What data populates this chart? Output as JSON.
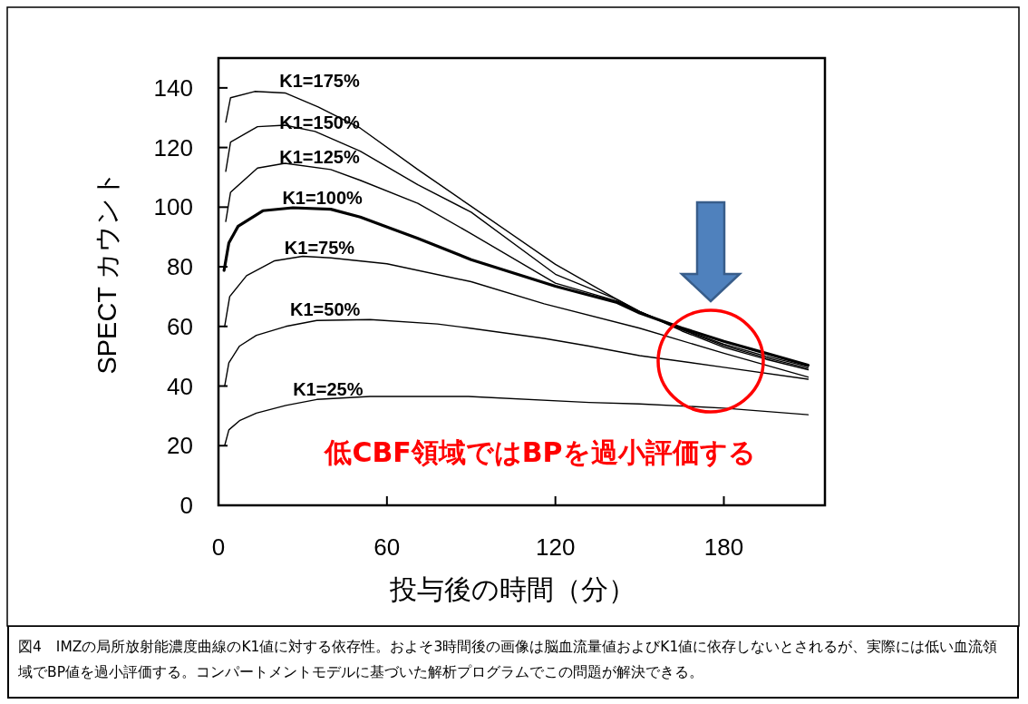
{
  "chart_data": {
    "type": "line",
    "xlabel": "投与後の時間（分）",
    "ylabel": "SPECT カウント",
    "xlim": [
      0,
      216
    ],
    "xticks": [
      0,
      60,
      120,
      180
    ],
    "ylim": [
      0,
      150
    ],
    "yticks": [
      0,
      20,
      40,
      60,
      80,
      100,
      120,
      140
    ],
    "grid": false,
    "marker": "none",
    "line_style": "solid",
    "series": [
      {
        "name": "K1=175%",
        "color": "#000000",
        "x": [
          2.6,
          4.3,
          12.9,
          23.7,
          35.5,
          50.5,
          71,
          90,
          120,
          142,
          150,
          165,
          180,
          195,
          210
        ],
        "values": [
          128.5,
          136.7,
          138.8,
          138.3,
          133.6,
          126.5,
          112.6,
          100.3,
          80.8,
          69,
          65,
          58.5,
          53,
          49,
          45.5
        ]
      },
      {
        "name": "K1=150%",
        "color": "#000000",
        "x": [
          2.6,
          4.3,
          13.9,
          23.7,
          34.4,
          50.5,
          71,
          90,
          120,
          142,
          150,
          165,
          180,
          195,
          210
        ],
        "values": [
          112,
          121.8,
          127,
          127.5,
          125.4,
          118.8,
          107.5,
          98.3,
          77.5,
          69,
          65,
          59,
          53.5,
          49.5,
          46
        ]
      },
      {
        "name": "K1=125%",
        "color": "#000000",
        "x": [
          2.6,
          4.3,
          13.9,
          23.7,
          40,
          50.5,
          71,
          90,
          120,
          142,
          150,
          165,
          180,
          195,
          210
        ],
        "values": [
          95.2,
          105,
          113.1,
          114.7,
          112.6,
          109,
          101.3,
          91.1,
          74.5,
          68.5,
          65,
          59,
          54,
          50,
          46.5
        ]
      },
      {
        "name": "K1=100%",
        "color": "#000000",
        "x": [
          2,
          3.7,
          7,
          15.8,
          26.5,
          40,
          50.5,
          71,
          90,
          120,
          142,
          150,
          165,
          180,
          195,
          210
        ],
        "values": [
          78.8,
          88,
          93.6,
          98.8,
          99.8,
          99.3,
          96.7,
          89.5,
          82.4,
          73.5,
          68,
          64.5,
          59.5,
          55,
          51,
          47
        ]
      },
      {
        "name": "K1=75%",
        "color": "#000000",
        "x": [
          2.2,
          4,
          10,
          20,
          30,
          40,
          50,
          60,
          90,
          116,
          150,
          180,
          210
        ],
        "values": [
          60,
          70,
          77,
          82,
          83.5,
          83,
          82,
          81,
          75,
          67.6,
          59.4,
          51,
          43
        ]
      },
      {
        "name": "K1=50%",
        "color": "#000000",
        "x": [
          2.2,
          3.7,
          7.5,
          13.5,
          24,
          35,
          54,
          78,
          89,
          116,
          132,
          150,
          180,
          210
        ],
        "values": [
          40,
          47.8,
          53.4,
          57,
          60,
          62,
          62.3,
          60.8,
          59.5,
          56,
          53.4,
          50.2,
          46.3,
          42.3
        ]
      },
      {
        "name": "K1=25%",
        "color": "#000000",
        "x": [
          2.2,
          3.7,
          7.5,
          13.5,
          24,
          35,
          54,
          89,
          132,
          150,
          180,
          210
        ],
        "values": [
          20,
          25.3,
          28.4,
          30.9,
          33.5,
          35.5,
          36.5,
          36.5,
          34.5,
          34,
          32.6,
          30.4
        ]
      }
    ],
    "annotations": [
      "低CBF領域ではBPを過小評価する",
      "図4　IMZの局所放射能濃度曲線のK1値に対する依存性。およそ3時間後の画像は脳血流量値およびK1値に依存しないとされるが、実際には低い血流領域でBP値を過小評価する。コンパートメントモデルに基づいた解析プログラムでこの問題が解決できる。"
    ]
  }
}
